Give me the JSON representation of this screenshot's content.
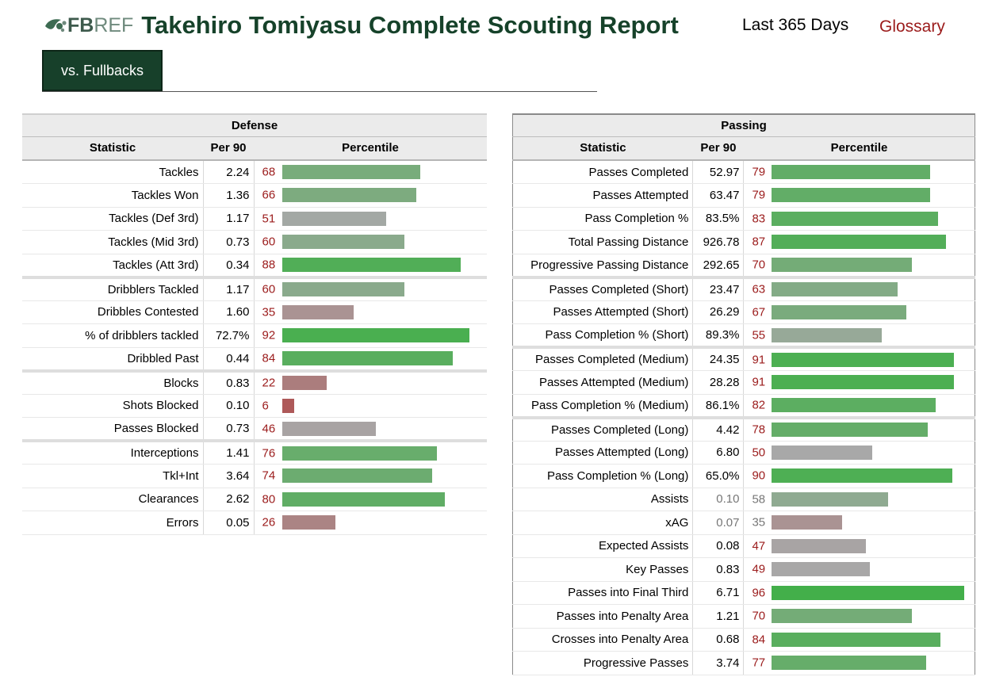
{
  "header": {
    "logo_fb": "FB",
    "logo_ref": "REF",
    "title": "Takehiro Tomiyasu Complete Scouting Report",
    "period": "Last 365 Days",
    "glossary": "Glossary"
  },
  "tabs": [
    {
      "label": "vs. Fullbacks",
      "active": true
    }
  ],
  "colors": {
    "brand_green": "#17402a",
    "percentile_text": "#9b1b1b",
    "bar_high": "#3cb043",
    "bar_mid": "#a8a8a8",
    "bar_low": "#b03a3a"
  },
  "columns": {
    "statistic": "Statistic",
    "per90": "Per 90",
    "percentile": "Percentile"
  },
  "defense": {
    "title": "Defense",
    "groups": [
      [
        {
          "stat": "Tackles",
          "per90": "2.24",
          "pct": 68
        },
        {
          "stat": "Tackles Won",
          "per90": "1.36",
          "pct": 66
        },
        {
          "stat": "Tackles (Def 3rd)",
          "per90": "1.17",
          "pct": 51
        },
        {
          "stat": "Tackles (Mid 3rd)",
          "per90": "0.73",
          "pct": 60
        },
        {
          "stat": "Tackles (Att 3rd)",
          "per90": "0.34",
          "pct": 88
        }
      ],
      [
        {
          "stat": "Dribblers Tackled",
          "per90": "1.17",
          "pct": 60
        },
        {
          "stat": "Dribbles Contested",
          "per90": "1.60",
          "pct": 35
        },
        {
          "stat": "% of dribblers tackled",
          "per90": "72.7%",
          "pct": 92
        },
        {
          "stat": "Dribbled Past",
          "per90": "0.44",
          "pct": 84
        }
      ],
      [
        {
          "stat": "Blocks",
          "per90": "0.83",
          "pct": 22
        },
        {
          "stat": "Shots Blocked",
          "per90": "0.10",
          "pct": 6
        },
        {
          "stat": "Passes Blocked",
          "per90": "0.73",
          "pct": 46
        }
      ],
      [
        {
          "stat": "Interceptions",
          "per90": "1.41",
          "pct": 76
        },
        {
          "stat": "Tkl+Int",
          "per90": "3.64",
          "pct": 74
        },
        {
          "stat": "Clearances",
          "per90": "2.62",
          "pct": 80
        },
        {
          "stat": "Errors",
          "per90": "0.05",
          "pct": 26
        }
      ]
    ]
  },
  "passing": {
    "title": "Passing",
    "groups": [
      [
        {
          "stat": "Passes Completed",
          "per90": "52.97",
          "pct": 79
        },
        {
          "stat": "Passes Attempted",
          "per90": "63.47",
          "pct": 79
        },
        {
          "stat": "Pass Completion %",
          "per90": "83.5%",
          "pct": 83
        },
        {
          "stat": "Total Passing Distance",
          "per90": "926.78",
          "pct": 87
        },
        {
          "stat": "Progressive Passing Distance",
          "per90": "292.65",
          "pct": 70
        }
      ],
      [
        {
          "stat": "Passes Completed (Short)",
          "per90": "23.47",
          "pct": 63
        },
        {
          "stat": "Passes Attempted (Short)",
          "per90": "26.29",
          "pct": 67
        },
        {
          "stat": "Pass Completion % (Short)",
          "per90": "89.3%",
          "pct": 55
        }
      ],
      [
        {
          "stat": "Passes Completed (Medium)",
          "per90": "24.35",
          "pct": 91
        },
        {
          "stat": "Passes Attempted (Medium)",
          "per90": "28.28",
          "pct": 91
        },
        {
          "stat": "Pass Completion % (Medium)",
          "per90": "86.1%",
          "pct": 82
        }
      ],
      [
        {
          "stat": "Passes Completed (Long)",
          "per90": "4.42",
          "pct": 78
        },
        {
          "stat": "Passes Attempted (Long)",
          "per90": "6.80",
          "pct": 50
        },
        {
          "stat": "Pass Completion % (Long)",
          "per90": "65.0%",
          "pct": 90
        },
        {
          "stat": "Assists",
          "per90": "0.10",
          "pct": 58,
          "muted": true
        },
        {
          "stat": "xAG",
          "per90": "0.07",
          "pct": 35,
          "muted": true
        },
        {
          "stat": "Expected Assists",
          "per90": "0.08",
          "pct": 47
        },
        {
          "stat": "Key Passes",
          "per90": "0.83",
          "pct": 49
        },
        {
          "stat": "Passes into Final Third",
          "per90": "6.71",
          "pct": 96
        },
        {
          "stat": "Passes into Penalty Area",
          "per90": "1.21",
          "pct": 70
        },
        {
          "stat": "Crosses into Penalty Area",
          "per90": "0.68",
          "pct": 84
        },
        {
          "stat": "Progressive Passes",
          "per90": "3.74",
          "pct": 77
        }
      ]
    ]
  }
}
